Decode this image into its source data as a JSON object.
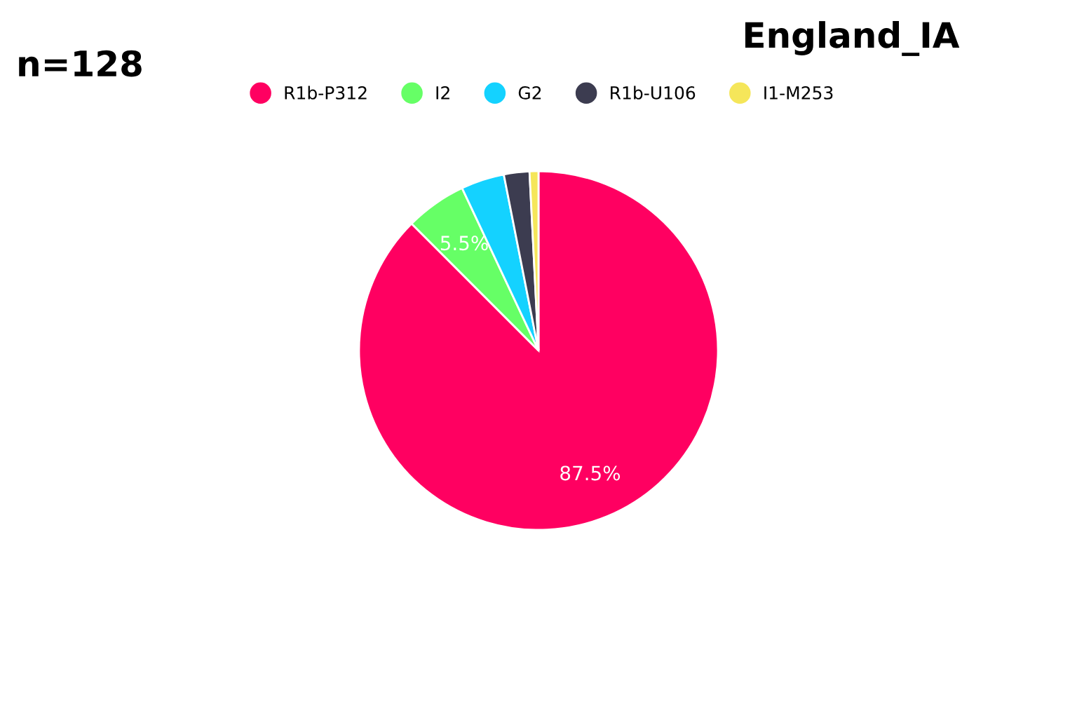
{
  "chart_data": {
    "type": "pie",
    "title": "England_IA",
    "annotations": [
      "n=128"
    ],
    "categories": [
      "R1b-P312",
      "I2",
      "G2",
      "R1b-U106",
      "I1-M253"
    ],
    "values": [
      87.5,
      5.5,
      3.9,
      2.3,
      0.8
    ],
    "colors": [
      "#ff0061",
      "#66ff66",
      "#14d2ff",
      "#3c3c50",
      "#f5e65a"
    ],
    "value_labels": [
      "87.5%",
      "5.5%",
      null,
      null,
      null
    ],
    "legend": "top"
  }
}
